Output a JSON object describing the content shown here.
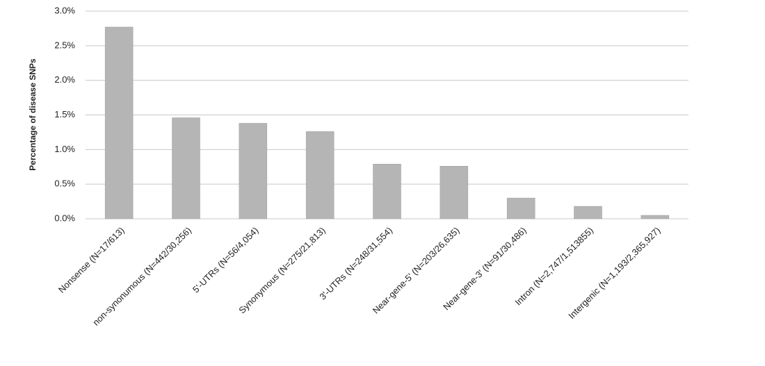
{
  "chart_data": {
    "type": "bar",
    "y_axis_label": "Percentage of disease SNPs",
    "categories": [
      "Nonsense (N=17/613)",
      "non-synonumous (N=442/30,256)",
      "5'-UTRs (N=56/4,054)",
      "Synonymous (N=275/21,813)",
      "3'-UTRs (N=248/31,554)",
      "Near-gene-5' (N=203/26,635)",
      "Near-gene-3' (N=91/30,486)",
      "Intron (N=2,747/1,513855)",
      "Intergenic (N=1,193/2,365,927)"
    ],
    "values": [
      2.77,
      1.46,
      1.38,
      1.26,
      0.79,
      0.76,
      0.3,
      0.18,
      0.05
    ],
    "color": "#b5b5b5",
    "ylim": [
      0,
      3
    ],
    "yticks": [
      {
        "value": 0,
        "label": "0.0%"
      },
      {
        "value": 0.5,
        "label": "0.5%"
      },
      {
        "value": 1,
        "label": "1.0%"
      },
      {
        "value": 1.5,
        "label": "1.5%"
      },
      {
        "value": 2,
        "label": "2.0%"
      },
      {
        "value": 2.5,
        "label": "2.5%"
      },
      {
        "value": 3,
        "label": "3.0%"
      }
    ],
    "grid": true
  }
}
